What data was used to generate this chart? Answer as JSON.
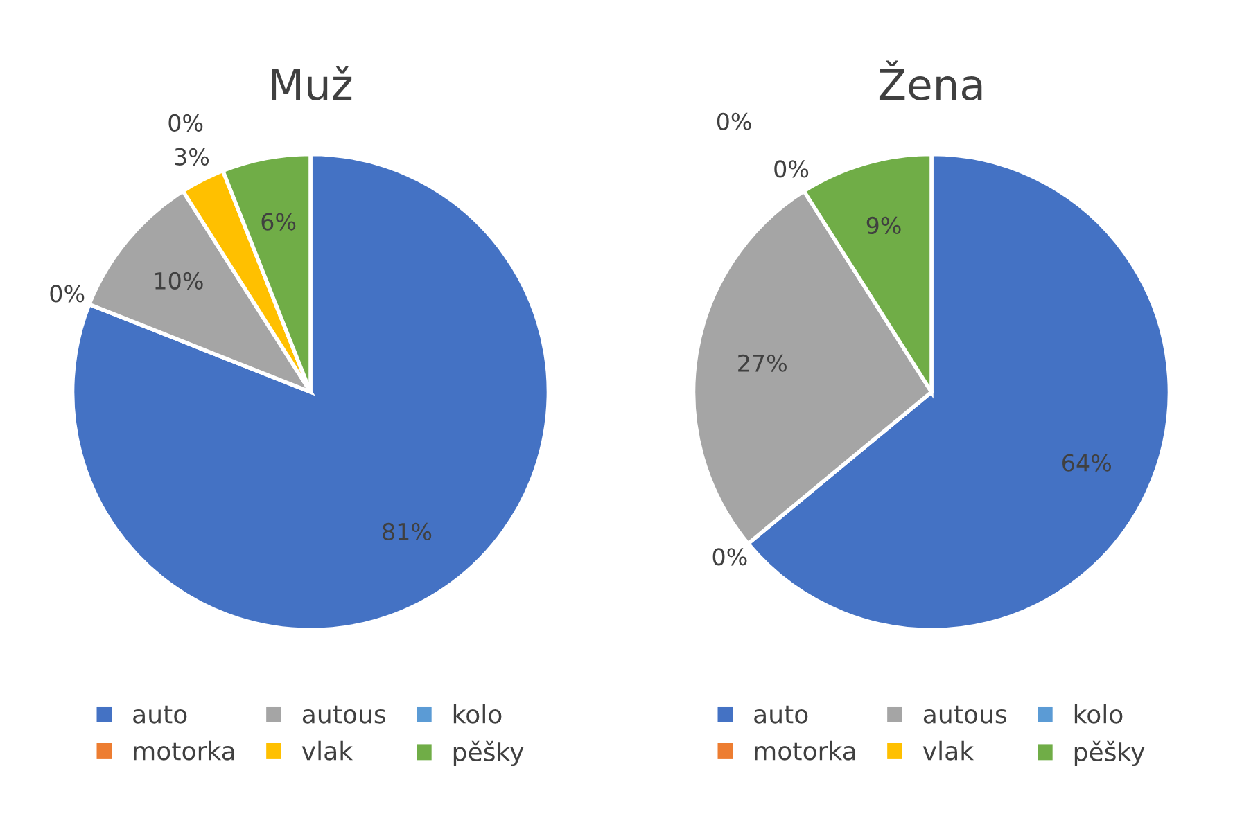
{
  "chart_data": [
    {
      "type": "pie",
      "title": "Muž",
      "categories": [
        "auto",
        "motorka",
        "autous",
        "vlak",
        "kolo",
        "pěšky"
      ],
      "values": [
        81,
        0,
        10,
        3,
        0,
        6
      ],
      "colors": [
        "#4472c4",
        "#ed7d31",
        "#a5a5a5",
        "#ffc000",
        "#5b9bd5",
        "#70ad47"
      ],
      "value_labels": [
        "81%",
        "0%",
        "10%",
        "3%",
        "0%",
        "6%"
      ],
      "legend": "bottom"
    },
    {
      "type": "pie",
      "title": "Žena",
      "categories": [
        "auto",
        "motorka",
        "autous",
        "vlak",
        "kolo",
        "pěšky"
      ],
      "values": [
        64,
        0,
        27,
        0,
        0,
        9
      ],
      "colors": [
        "#4472c4",
        "#ed7d31",
        "#a5a5a5",
        "#ffc000",
        "#5b9bd5",
        "#70ad47"
      ],
      "value_labels": [
        "64%",
        "0%",
        "27%",
        "0%",
        "0%",
        "9%"
      ],
      "legend": "bottom"
    }
  ]
}
